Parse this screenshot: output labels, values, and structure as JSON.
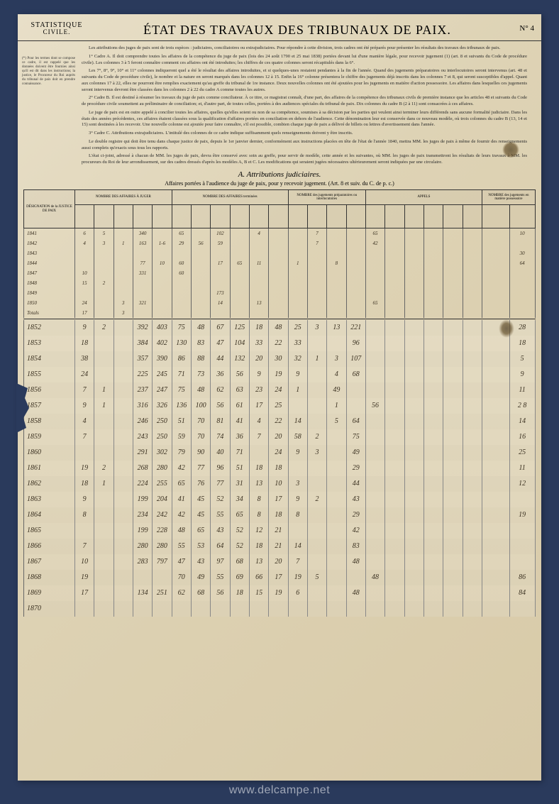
{
  "header": {
    "stat_title": "STATISTIQUE",
    "stat_sub": "CIVILE.",
    "main_title": "ÉTAT DES TRAVAUX DES TRIBUNAUX DE PAIX.",
    "doc_no": "N° 4"
  },
  "side_note": "(*) Pour les termes dont se compose ce cadre, il est rappelé que les données doivent être fournies ainsi qu'il est dit dans les instructions; la justice, le Procureur du Roi auprès du tribunal de paix doit en prendre connaissance.",
  "intro": [
    "Les attributions des juges de paix sont de trois espèces : judiciaires, conciliatoires ou extrajudiciaires. Pour répondre à cette division, trois cadres ont été préparés pour présenter les résultats des travaux des tribunaux de paix.",
    "1° Cadre A. Il doit comprendre toutes les affaires de la compétence du juge de paix (lois des 24 août 1790 et 25 mai 1838) portées devant lui d'une manière légale, pour recevoir jugement (1) (art. 8 et suivants du Code de procédure civile). Les colonnes 3 à 5 feront connaître comment ces affaires ont été introduites; les chiffres de ces quatre colonnes seront récapitulés dans la 6°.",
    "Les 7°, 8°, 9°, 10° et 11° colonnes indiqueront quel a été le résultat des affaires introduites, et si quelques-unes restaient pendantes à la fin de l'année. Quand des jugements préparatoires ou interlocutoires seront intervenus (art. 48 et suivants du Code de procédure civile), le nombre et la nature en seront marqués dans les colonnes 12 à 15. Enfin la 16° colonne présentera le chiffre des jugements déjà inscrits dans les colonnes 7 et 8, qui seront susceptibles d'appel. Quant aux colonnes 17 à 22, elles ne pourront être remplies exactement qu'au greffe du tribunal de 1re instance. Deux nouvelles colonnes ont été ajoutées pour les jugements en matière d'action possessoire. Les affaires dans lesquelles ces jugements seront intervenus devront être classées dans les colonnes 2 à 22 du cadre A comme toutes les autres.",
    "2° Cadre B. Il est destiné à résumer les travaux du juge de paix comme conciliateur. À ce titre, ce magistrat connaît, d'une part, des affaires de la compétence des tribunaux civils de première instance que les articles 48 et suivants du Code de procédure civile soumettent au préliminaire de conciliation; et, d'autre part, de toutes celles, portées à des audiences spéciales du tribunal de paix. Dix colonnes du cadre B (2 à 11) sont consacrées à ces affaires.",
    "Le juge de paix est en outre appelé à concilier toutes les affaires, quelles qu'elles soient ou non de sa compétence, soumises à sa décision par les parties qui veulent ainsi terminer leurs différends sans aucune formalité judiciaire. Dans les états des années précédentes, ces affaires étaient classées sous la qualification d'affaires portées en conciliation en dehors de l'audience. Cette dénomination leur est conservée dans ce nouveau modèle, où trois colonnes du cadre B (13, 14 et 15) sont destinées à les recevoir. Une nouvelle colonne est ajoutée pour faire connaître, s'il est possible, combien chaque juge de paix a délivré de billets ou lettres d'avertissement dans l'année.",
    "3° Cadre C. Attributions extrajudiciaires. L'intitulé des colonnes de ce cadre indique suffisamment quels renseignements doivent y être inscrits.",
    "Le double registre qui doit être tenu dans chaque justice de paix, depuis le 1er janvier dernier, conformément aux instructions placées en tête de l'état de l'année 1840, mettra MM. les juges de paix à même de fournir des renseignements aussi complets qu'exacts sous tous les rapports.",
    "L'état ci-joint, adressé à chacun de MM. les juges de paix, devra être conservé avec soin au greffe, pour servir de modèle, cette année et les suivantes, où MM. les juges de paix transmettront les résultats de leurs travaux à MM. les procureurs du Roi de leur arrondissement, sur des cadres dressés d'après les modèles A, B et C. Les modifications qui seraient jugées nécessaires ultérieurement seront indiquées par une circulaire."
  ],
  "section": {
    "letter_title": "A. Attributions judiciaires.",
    "caption": "Affaires portées à l'audience du juge de paix, pour y recevoir jugement. (Art. 8 et suiv. du C. de p. c.)"
  },
  "columns": {
    "group_headers": [
      "DÉSIGNATION de la JUSTICE DE PAIX",
      "NOMBRE DES AFFAIRES À JUGER",
      "NOMBRE DES AFFAIRES terminées",
      "NOMBRE des jugements préparatoires ou interlocutoires",
      "APPELS",
      "NOMBRE des jugements en matière possessoire"
    ],
    "widths_pct": [
      10,
      3.8,
      3.8,
      3.8,
      3.8,
      3.8,
      3.8,
      3.8,
      3.8,
      3.8,
      3.8,
      3.8,
      3.8,
      3.8,
      3.8,
      3.8,
      3.8,
      3.8,
      3.8,
      3.8,
      3.8,
      3.8,
      5.4,
      5.0
    ]
  },
  "rows_upper": [
    {
      "y": "1841",
      "c": [
        "6",
        "5",
        "",
        "340",
        "",
        "65",
        "",
        "102",
        "",
        "4",
        "",
        "",
        "7",
        "",
        "",
        "65",
        "",
        "",
        "",
        "",
        "",
        "",
        "10",
        ""
      ]
    },
    {
      "y": "1842",
      "c": [
        "4",
        "3",
        "1",
        "163",
        "1-6",
        "29",
        "56",
        "59",
        "",
        "",
        "",
        "",
        "7",
        "",
        "",
        "42",
        "",
        "",
        "",
        "",
        "",
        "",
        "",
        ""
      ]
    },
    {
      "y": "1843",
      "c": [
        "",
        "",
        "",
        "",
        "",
        "",
        "",
        "",
        "",
        "",
        "",
        "",
        "",
        "",
        "",
        "",
        "",
        "",
        "",
        "",
        "",
        "",
        "30",
        ""
      ]
    },
    {
      "y": "1844",
      "c": [
        "",
        "",
        "",
        "77",
        "10",
        "60",
        "",
        "17",
        "65",
        "11",
        "",
        "1",
        "",
        "8",
        "",
        "",
        "",
        "",
        "",
        "",
        "",
        "",
        "64",
        ""
      ]
    },
    {
      "y": "1847",
      "c": [
        "10",
        "",
        "",
        "331",
        "",
        "60",
        "",
        "",
        "",
        "",
        "",
        "",
        "",
        "",
        "",
        "",
        "",
        "",
        "",
        "",
        "",
        "",
        "",
        ""
      ]
    },
    {
      "y": "1848",
      "c": [
        "15",
        "2",
        "",
        "",
        "",
        "",
        "",
        "",
        "",
        "",
        "",
        "",
        "",
        "",
        "",
        "",
        "",
        "",
        "",
        "",
        "",
        "",
        "",
        ""
      ]
    },
    {
      "y": "1849",
      "c": [
        "",
        "",
        "",
        "",
        "",
        "",
        "",
        "173",
        "",
        "",
        "",
        "",
        "",
        "",
        "",
        "",
        "",
        "",
        "",
        "",
        "",
        "",
        "",
        ""
      ]
    },
    {
      "y": "1850",
      "c": [
        "24",
        "",
        "3",
        "321",
        "",
        "",
        "",
        "14",
        "",
        "13",
        "",
        "",
        "",
        "",
        "",
        "65",
        "",
        "",
        "",
        "",
        "",
        "",
        "",
        ""
      ]
    },
    {
      "y": "Totals",
      "c": [
        "17",
        "",
        "3",
        "",
        "",
        "",
        "",
        "",
        "",
        "",
        "",
        "",
        "",
        "",
        "",
        "",
        "",
        "",
        "",
        "",
        "",
        "",
        "",
        ""
      ]
    }
  ],
  "rows_lower": [
    {
      "y": "1852",
      "c": [
        "9",
        "2",
        "",
        "392",
        "403",
        "75",
        "48",
        "67",
        "125",
        "18",
        "48",
        "25",
        "3",
        "13",
        "221",
        "",
        "",
        "",
        "",
        "",
        "",
        "",
        "28",
        "2"
      ]
    },
    {
      "y": "1853",
      "c": [
        "18",
        "",
        "",
        "384",
        "402",
        "130",
        "83",
        "47",
        "104",
        "33",
        "22",
        "33",
        "",
        "",
        "96",
        "",
        "",
        "",
        "",
        "",
        "",
        "",
        "18",
        ""
      ]
    },
    {
      "y": "1854",
      "c": [
        "38",
        "",
        "",
        "357",
        "390",
        "86",
        "88",
        "44",
        "132",
        "20",
        "30",
        "32",
        "1",
        "3",
        "107",
        "",
        "",
        "",
        "",
        "",
        "",
        "",
        "5",
        ""
      ]
    },
    {
      "y": "1855",
      "c": [
        "24",
        "",
        "",
        "225",
        "245",
        "71",
        "73",
        "36",
        "56",
        "9",
        "19",
        "9",
        "",
        "4",
        "68",
        "",
        "",
        "",
        "",
        "",
        "",
        "",
        "9",
        ""
      ]
    },
    {
      "y": "1856",
      "c": [
        "7",
        "1",
        "",
        "237",
        "247",
        "75",
        "48",
        "62",
        "63",
        "23",
        "24",
        "1",
        "",
        "49",
        "",
        "",
        "",
        "",
        "",
        "",
        "",
        "",
        "11",
        "2"
      ]
    },
    {
      "y": "1857",
      "c": [
        "9",
        "1",
        "",
        "316",
        "326",
        "136",
        "100",
        "56",
        "61",
        "17",
        "25",
        "",
        "",
        "1",
        "",
        "56",
        "",
        "",
        "",
        "",
        "",
        "",
        "2 8",
        ""
      ]
    },
    {
      "y": "1858",
      "c": [
        "4",
        "",
        "",
        "246",
        "250",
        "51",
        "70",
        "81",
        "41",
        "4",
        "22",
        "14",
        "",
        "5",
        "64",
        "",
        "",
        "",
        "",
        "",
        "",
        "",
        "14",
        ""
      ]
    },
    {
      "y": "1859",
      "c": [
        "7",
        "",
        "",
        "243",
        "250",
        "59",
        "70",
        "74",
        "36",
        "7",
        "20",
        "58",
        "2",
        "",
        "75",
        "",
        "",
        "",
        "",
        "",
        "",
        "",
        "16",
        ""
      ]
    },
    {
      "y": "1860",
      "c": [
        "",
        "",
        "",
        "291",
        "302",
        "79",
        "90",
        "40",
        "71",
        "",
        "24",
        "9",
        "3",
        "",
        "49",
        "",
        "",
        "",
        "",
        "",
        "",
        "",
        "25",
        ""
      ]
    },
    {
      "y": "1861",
      "c": [
        "19",
        "2",
        "",
        "268",
        "280",
        "42",
        "77",
        "96",
        "51",
        "18",
        "18",
        "",
        "",
        "",
        "29",
        "",
        "",
        "",
        "",
        "",
        "",
        "",
        "11",
        "3"
      ]
    },
    {
      "y": "1862",
      "c": [
        "18",
        "1",
        "",
        "224",
        "255",
        "65",
        "76",
        "77",
        "31",
        "13",
        "10",
        "3",
        "",
        "",
        "44",
        "",
        "",
        "",
        "",
        "",
        "",
        "",
        "12",
        ""
      ]
    },
    {
      "y": "1863",
      "c": [
        "9",
        "",
        "",
        "199",
        "204",
        "41",
        "45",
        "52",
        "34",
        "8",
        "17",
        "9",
        "2",
        "",
        "43",
        "",
        "",
        "",
        "",
        "",
        "",
        "",
        "",
        ""
      ]
    },
    {
      "y": "1864",
      "c": [
        "8",
        "",
        "",
        "234",
        "242",
        "42",
        "45",
        "55",
        "65",
        "8",
        "18",
        "8",
        "",
        "",
        "29",
        "",
        "",
        "",
        "",
        "",
        "",
        "",
        "19",
        ""
      ]
    },
    {
      "y": "1865",
      "c": [
        "",
        "",
        "",
        "199",
        "228",
        "48",
        "65",
        "43",
        "52",
        "12",
        "21",
        "",
        "",
        "",
        "42",
        "",
        "",
        "",
        "",
        "",
        "",
        "",
        "",
        ""
      ]
    },
    {
      "y": "1866",
      "c": [
        "7",
        "",
        "",
        "280",
        "280",
        "55",
        "53",
        "64",
        "52",
        "18",
        "21",
        "14",
        "",
        "",
        "83",
        "",
        "",
        "",
        "",
        "",
        "",
        "",
        "",
        ""
      ]
    },
    {
      "y": "1867",
      "c": [
        "10",
        "",
        "",
        "283",
        "797",
        "47",
        "43",
        "97",
        "68",
        "13",
        "20",
        "7",
        "",
        "",
        "48",
        "",
        "",
        "",
        "",
        "",
        "",
        "",
        "",
        ""
      ]
    },
    {
      "y": "1868",
      "c": [
        "19",
        "",
        "",
        "",
        "",
        "70",
        "49",
        "55",
        "69",
        "66",
        "17",
        "19",
        "5",
        "",
        "",
        "48",
        "",
        "",
        "",
        "",
        "",
        "",
        "86",
        "1"
      ]
    },
    {
      "y": "1869",
      "c": [
        "17",
        "",
        "",
        "134",
        "251",
        "62",
        "68",
        "56",
        "18",
        "15",
        "19",
        "6",
        "",
        "",
        "48",
        "",
        "",
        "",
        "",
        "",
        "",
        "",
        "84",
        "1"
      ]
    },
    {
      "y": "1870",
      "c": [
        "",
        "",
        "",
        "",
        "",
        "",
        "",
        "",
        "",
        "",
        "",
        "",
        "",
        "",
        "",
        "",
        "",
        "",
        "",
        "",
        "",
        "",
        "",
        ""
      ]
    }
  ],
  "watermark": {
    "text": "www.delcampe.net",
    "url": "https://www.delcampe.net"
  }
}
